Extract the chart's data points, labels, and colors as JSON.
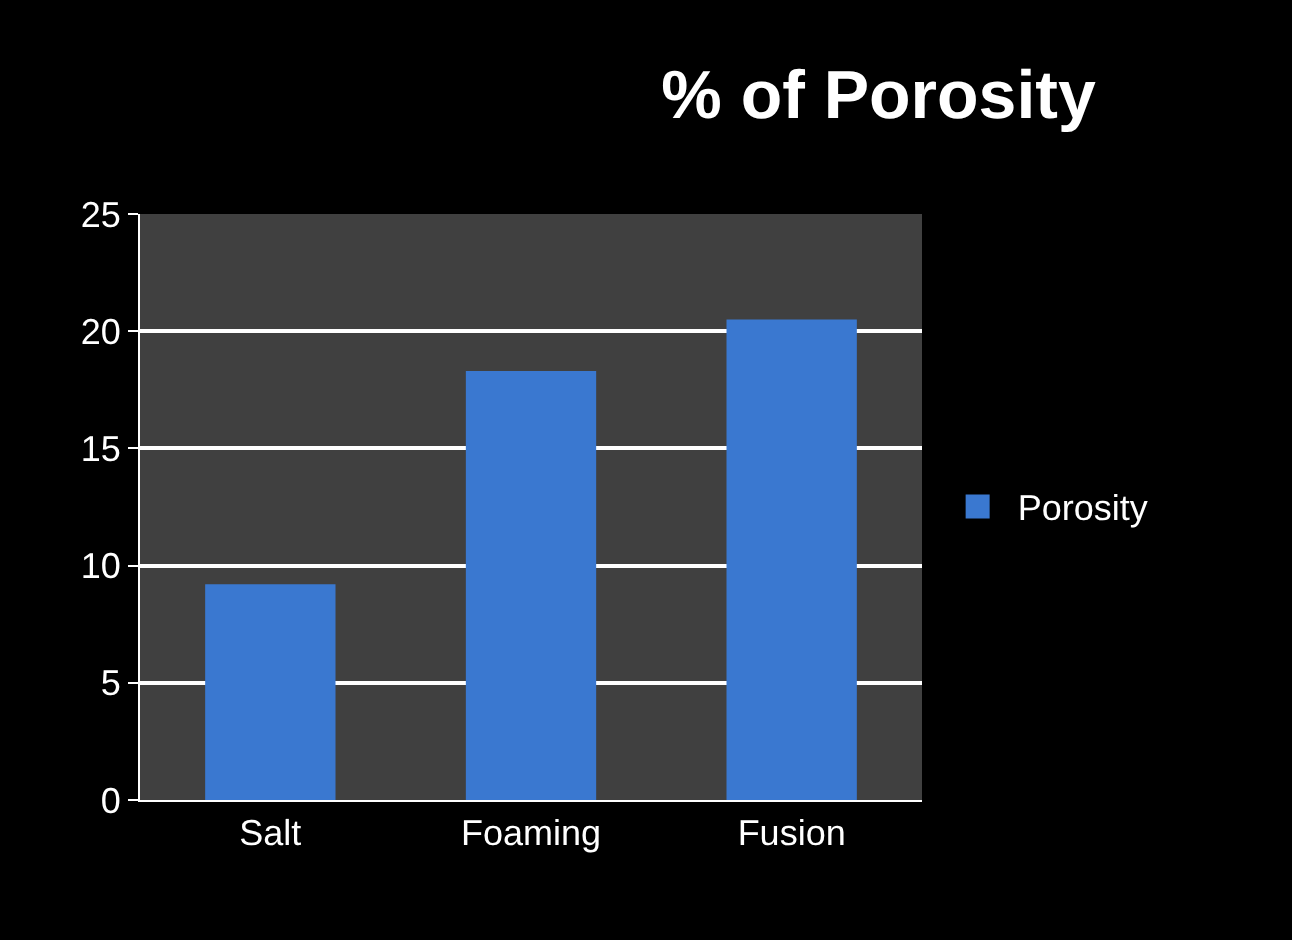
{
  "chart_data": {
    "type": "bar",
    "title": "% of Porosity",
    "categories": [
      "Salt",
      "Foaming",
      "Fusion"
    ],
    "series": [
      {
        "name": "Porosity",
        "color": "#3a78d0",
        "values": [
          9.2,
          18.3,
          20.5
        ]
      }
    ],
    "ylim": [
      0,
      25
    ],
    "yticks": [
      0,
      5,
      10,
      15,
      20,
      25
    ],
    "grid": "y",
    "legend": "right"
  }
}
